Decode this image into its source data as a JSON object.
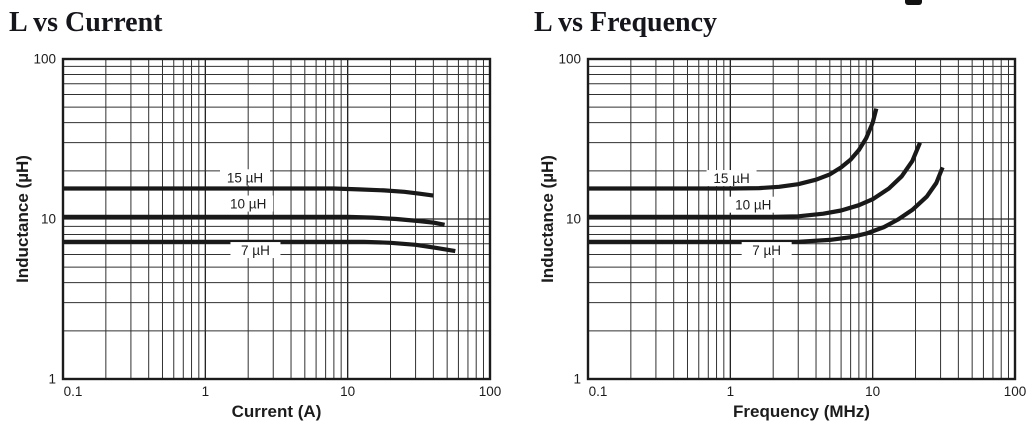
{
  "page": {
    "background": "#ffffff"
  },
  "chart_data": [
    {
      "type": "line",
      "title": "L vs Current",
      "xlabel": "Current (A)",
      "ylabel": "Inductance (µH)",
      "x_scale": "log",
      "y_scale": "log",
      "xlim": [
        0.1,
        100
      ],
      "ylim": [
        1,
        100
      ],
      "grid": "log minor + major, on",
      "legend_position": "inline-labels",
      "line_color": "#191919",
      "grid_color": "#313131",
      "x_tick_values": [
        0.1,
        1,
        10,
        100
      ],
      "x_tick_labels": [
        "0.1",
        "1",
        "10",
        "100"
      ],
      "y_tick_values": [
        100,
        10,
        1
      ],
      "y_tick_labels": [
        "100",
        "10",
        "1"
      ],
      "series": [
        {
          "name": "15 µH",
          "points": [
            [
              0.1,
              15.5
            ],
            [
              1,
              15.5
            ],
            [
              5,
              15.5
            ],
            [
              8,
              15.5
            ],
            [
              12,
              15.3
            ],
            [
              18,
              15.1
            ],
            [
              25,
              14.8
            ],
            [
              32,
              14.4
            ],
            [
              40,
              14.0
            ]
          ]
        },
        {
          "name": "10 µH",
          "points": [
            [
              0.1,
              10.3
            ],
            [
              1,
              10.3
            ],
            [
              6,
              10.3
            ],
            [
              10,
              10.3
            ],
            [
              15,
              10.2
            ],
            [
              22,
              10.0
            ],
            [
              32,
              9.7
            ],
            [
              40,
              9.5
            ],
            [
              48,
              9.2
            ]
          ]
        },
        {
          "name": "7 µH",
          "points": [
            [
              0.1,
              7.2
            ],
            [
              1,
              7.2
            ],
            [
              8,
              7.2
            ],
            [
              13,
              7.2
            ],
            [
              20,
              7.1
            ],
            [
              30,
              6.9
            ],
            [
              42,
              6.6
            ],
            [
              57,
              6.3
            ]
          ]
        }
      ],
      "series_labels": [
        {
          "text": "15 µH",
          "x": 1.9,
          "y": 18.1
        },
        {
          "text": "10 µH",
          "x": 2.0,
          "y": 12.4
        },
        {
          "text": "7 µH",
          "x": 2.25,
          "y": 6.35
        }
      ]
    },
    {
      "type": "line",
      "title": "L vs Frequency",
      "xlabel": "Frequency (MHz)",
      "ylabel": "Inductance (µH)",
      "x_scale": "log",
      "y_scale": "log",
      "xlim": [
        0.1,
        100
      ],
      "ylim": [
        1,
        100
      ],
      "grid": "log minor + major, on",
      "legend_position": "inline-labels",
      "line_color": "#191919",
      "grid_color": "#313131",
      "x_tick_values": [
        0.1,
        1,
        10,
        100
      ],
      "x_tick_labels": [
        "0.1",
        "1",
        "10",
        "100"
      ],
      "y_tick_values": [
        100,
        10,
        1
      ],
      "y_tick_labels": [
        "100",
        "10",
        "1"
      ],
      "series": [
        {
          "name": "15 µH",
          "points": [
            [
              0.1,
              15.5
            ],
            [
              1,
              15.5
            ],
            [
              1.6,
              15.6
            ],
            [
              2.2,
              15.9
            ],
            [
              3,
              16.5
            ],
            [
              4,
              17.6
            ],
            [
              5,
              19
            ],
            [
              6,
              21
            ],
            [
              7,
              23.5
            ],
            [
              8,
              27
            ],
            [
              9,
              32
            ],
            [
              10,
              40
            ],
            [
              10.6,
              49
            ]
          ]
        },
        {
          "name": "10 µH",
          "points": [
            [
              0.1,
              10.3
            ],
            [
              1,
              10.3
            ],
            [
              2,
              10.3
            ],
            [
              3,
              10.4
            ],
            [
              4.5,
              10.8
            ],
            [
              6,
              11.3
            ],
            [
              8,
              12.2
            ],
            [
              10,
              13.3
            ],
            [
              13,
              15.5
            ],
            [
              16,
              18.5
            ],
            [
              19,
              23
            ],
            [
              21.5,
              30
            ]
          ]
        },
        {
          "name": "7 µH",
          "points": [
            [
              0.1,
              7.2
            ],
            [
              1,
              7.2
            ],
            [
              3,
              7.2
            ],
            [
              5,
              7.4
            ],
            [
              7,
              7.7
            ],
            [
              9,
              8.1
            ],
            [
              12,
              8.9
            ],
            [
              15,
              9.9
            ],
            [
              19,
              11.4
            ],
            [
              24,
              13.8
            ],
            [
              28,
              16.8
            ],
            [
              31,
              21
            ]
          ]
        }
      ],
      "series_labels": [
        {
          "text": "15 µH",
          "x": 1.02,
          "y": 17.9
        },
        {
          "text": "10 µH",
          "x": 1.45,
          "y": 12.2
        },
        {
          "text": "7 µH",
          "x": 1.8,
          "y": 6.35
        }
      ]
    }
  ]
}
